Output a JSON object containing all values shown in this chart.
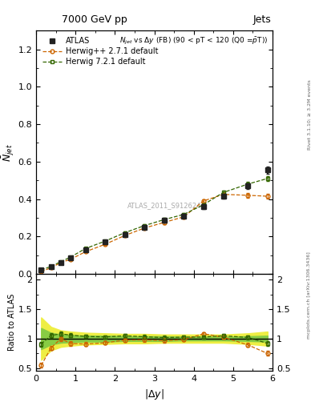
{
  "title_top": "7000 GeV pp",
  "title_right": "Jets",
  "ylabel_main": "$\\bar{N}_{jet}$",
  "ylabel_ratio": "Ratio to ATLAS",
  "xlabel": "$|\\Delta y|$",
  "atlas_label": "ATLAS_2011_S9126244",
  "legend_entries": [
    "ATLAS",
    "Herwig++ 2.7.1 default",
    "Herwig 7.2.1 default"
  ],
  "x_data": [
    0.125,
    0.375,
    0.625,
    0.875,
    1.25,
    1.75,
    2.25,
    2.75,
    3.25,
    3.75,
    4.25,
    4.75,
    5.375,
    5.875
  ],
  "atlas_y": [
    0.022,
    0.038,
    0.06,
    0.085,
    0.13,
    0.17,
    0.21,
    0.25,
    0.285,
    0.31,
    0.36,
    0.415,
    0.47,
    0.555
  ],
  "atlas_yerr": [
    0.002,
    0.003,
    0.004,
    0.005,
    0.006,
    0.007,
    0.008,
    0.009,
    0.01,
    0.01,
    0.012,
    0.013,
    0.015,
    0.018
  ],
  "hpp_y": [
    0.012,
    0.032,
    0.06,
    0.078,
    0.118,
    0.158,
    0.205,
    0.245,
    0.275,
    0.305,
    0.39,
    0.425,
    0.42,
    0.415
  ],
  "hpp_yerr": [
    0.001,
    0.002,
    0.003,
    0.003,
    0.004,
    0.005,
    0.006,
    0.007,
    0.008,
    0.008,
    0.01,
    0.011,
    0.013,
    0.014
  ],
  "h721_y": [
    0.02,
    0.04,
    0.065,
    0.09,
    0.135,
    0.175,
    0.22,
    0.258,
    0.29,
    0.318,
    0.37,
    0.435,
    0.48,
    0.51
  ],
  "h721_yerr": [
    0.001,
    0.002,
    0.003,
    0.004,
    0.005,
    0.006,
    0.007,
    0.008,
    0.008,
    0.009,
    0.01,
    0.012,
    0.013,
    0.014
  ],
  "hpp_ratio": [
    0.545,
    0.842,
    1.0,
    0.918,
    0.908,
    0.929,
    0.976,
    0.98,
    0.965,
    0.984,
    1.083,
    1.024,
    0.894,
    0.748
  ],
  "h721_ratio": [
    0.909,
    1.053,
    1.083,
    1.059,
    1.038,
    1.029,
    1.048,
    1.032,
    1.018,
    1.026,
    1.028,
    1.048,
    1.021,
    0.919
  ],
  "hpp_ratio_err": [
    0.04,
    0.04,
    0.04,
    0.04,
    0.03,
    0.03,
    0.03,
    0.03,
    0.03,
    0.03,
    0.03,
    0.03,
    0.03,
    0.04
  ],
  "h721_ratio_err": [
    0.04,
    0.04,
    0.04,
    0.04,
    0.03,
    0.03,
    0.03,
    0.03,
    0.03,
    0.03,
    0.03,
    0.03,
    0.03,
    0.04
  ],
  "atlas_band_green_lo": [
    0.82,
    0.9,
    0.93,
    0.94,
    0.95,
    0.95,
    0.96,
    0.96,
    0.96,
    0.97,
    0.97,
    0.97,
    0.96,
    0.95
  ],
  "atlas_band_green_hi": [
    1.18,
    1.1,
    1.07,
    1.06,
    1.05,
    1.05,
    1.04,
    1.04,
    1.04,
    1.03,
    1.03,
    1.03,
    1.04,
    1.05
  ],
  "atlas_band_yellow_lo": [
    0.64,
    0.8,
    0.86,
    0.88,
    0.9,
    0.91,
    0.92,
    0.92,
    0.93,
    0.93,
    0.93,
    0.93,
    0.91,
    0.88
  ],
  "atlas_band_yellow_hi": [
    1.36,
    1.2,
    1.14,
    1.12,
    1.1,
    1.09,
    1.08,
    1.08,
    1.07,
    1.07,
    1.07,
    1.07,
    1.09,
    1.12
  ],
  "ylim_main": [
    0.0,
    1.3
  ],
  "ylim_ratio": [
    0.45,
    2.1
  ],
  "xlim": [
    0.0,
    6.0
  ],
  "yticks_main": [
    0.0,
    0.2,
    0.4,
    0.6,
    0.8,
    1.0,
    1.2
  ],
  "yticks_ratio": [
    0.5,
    1.0,
    1.5,
    2.0
  ],
  "xticks": [
    0,
    1,
    2,
    3,
    4,
    5,
    6
  ],
  "color_atlas": "#222222",
  "color_hpp": "#cc6600",
  "color_h721": "#336600",
  "color_green_band": "#88cc44",
  "color_yellow_band": "#eeee44",
  "background_color": "#ffffff"
}
